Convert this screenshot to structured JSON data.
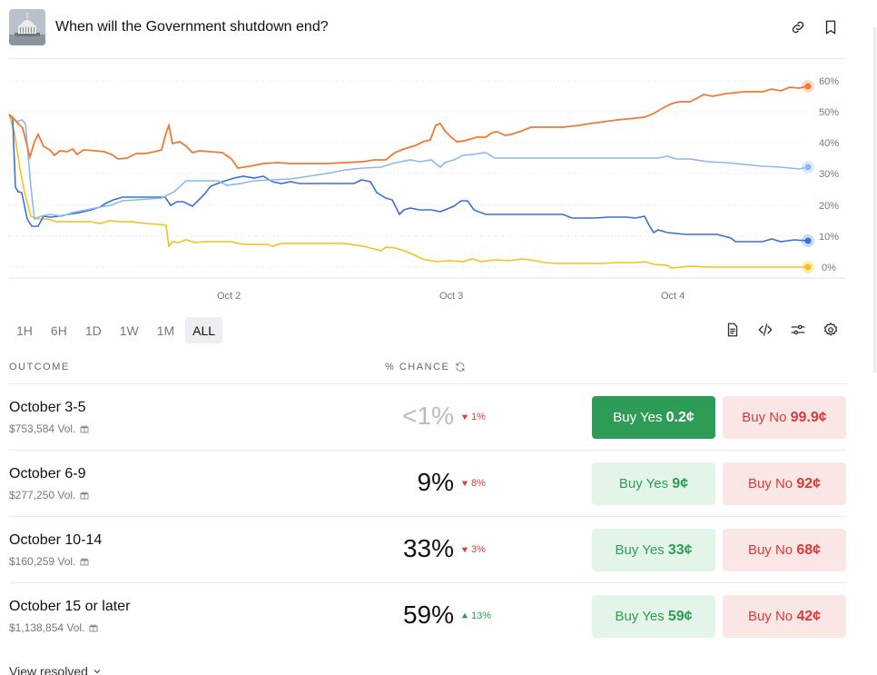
{
  "header": {
    "title": "When will the Government shutdown end?",
    "icons": [
      "capitol-thumbnail",
      "link-icon",
      "bookmark-icon"
    ]
  },
  "chart": {
    "y_ticks": [
      "60%",
      "50%",
      "40%",
      "30%",
      "20%",
      "10%",
      "0%"
    ],
    "x_ticks": [
      "Oct 2",
      "Oct 3",
      "Oct 4"
    ]
  },
  "range_buttons": [
    "1H",
    "6H",
    "1D",
    "1W",
    "1M",
    "ALL"
  ],
  "range_selected": "ALL",
  "tools": [
    "document-icon",
    "embed-code-icon",
    "sliders-icon",
    "settings-icon"
  ],
  "table": {
    "col_outcome": "OUTCOME",
    "col_chance": "% CHANCE",
    "rows": [
      {
        "name": "October 3-5",
        "volume": "$753,584 Vol.",
        "chance": "<1%",
        "delta": "1%",
        "delta_dir": "down",
        "yes_label": "Buy Yes",
        "yes_price": "0.2¢",
        "no_label": "Buy No",
        "no_price": "99.9¢"
      },
      {
        "name": "October 6-9",
        "volume": "$277,250 Vol.",
        "chance": "9%",
        "delta": "8%",
        "delta_dir": "down",
        "yes_label": "Buy Yes",
        "yes_price": "9¢",
        "no_label": "Buy No",
        "no_price": "92¢"
      },
      {
        "name": "October 10-14",
        "volume": "$160,259 Vol.",
        "chance": "33%",
        "delta": "3%",
        "delta_dir": "down",
        "yes_label": "Buy Yes",
        "yes_price": "33¢",
        "no_label": "Buy No",
        "no_price": "68¢"
      },
      {
        "name": "October 15 or later",
        "volume": "$1,138,854 Vol.",
        "chance": "59%",
        "delta": "13%",
        "delta_dir": "up",
        "yes_label": "Buy Yes",
        "yes_price": "59¢",
        "no_label": "Buy No",
        "no_price": "42¢"
      }
    ]
  },
  "footer": {
    "view_resolved": "View resolved"
  },
  "colors": {
    "series_oct15": "#f07a33",
    "series_oct10": "#8ab8ef",
    "series_oct6": "#3b6fd8",
    "series_oct3": "#f2c21a",
    "yes_green": "#2e9b56",
    "no_red": "#d83a3a"
  }
}
